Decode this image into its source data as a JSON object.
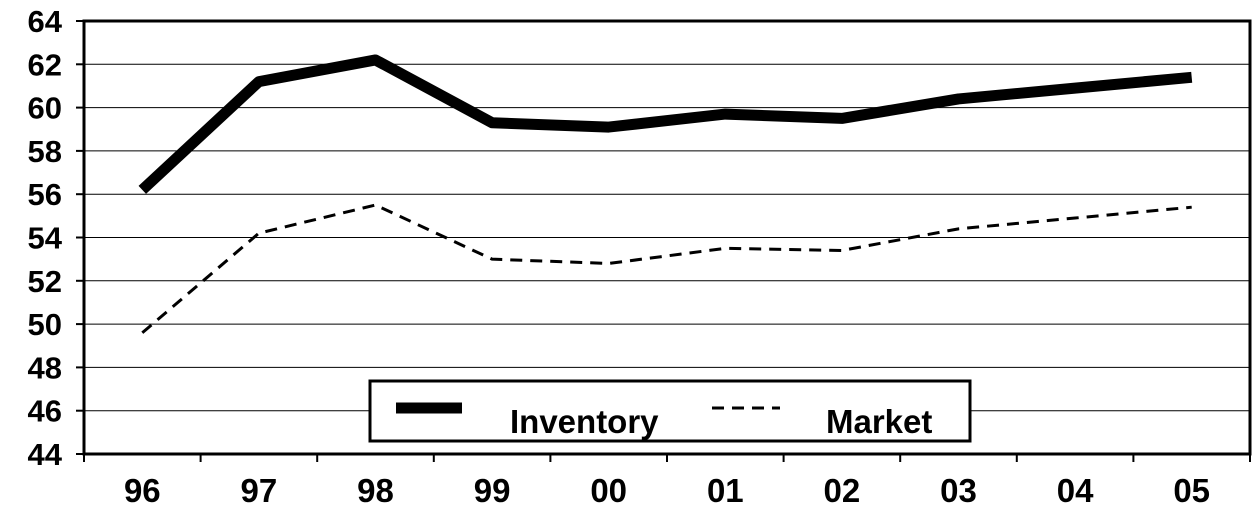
{
  "chart_data": {
    "type": "line",
    "categories": [
      "96",
      "97",
      "98",
      "99",
      "00",
      "01",
      "02",
      "03",
      "04",
      "05"
    ],
    "ylim": [
      44,
      64
    ],
    "yticks": [
      44,
      46,
      48,
      50,
      52,
      54,
      56,
      58,
      60,
      62,
      64
    ],
    "grid": true,
    "legend_position": "bottom-center",
    "series": [
      {
        "name": "Inventory",
        "style": "solid-thick",
        "color": "#000000",
        "values": [
          56.2,
          61.2,
          62.2,
          59.3,
          59.1,
          59.7,
          59.5,
          60.4,
          60.9,
          61.4
        ]
      },
      {
        "name": "Market",
        "style": "dashed",
        "color": "#000000",
        "values": [
          49.6,
          54.2,
          55.5,
          53.0,
          52.8,
          53.5,
          53.4,
          54.4,
          54.9,
          55.4
        ]
      }
    ]
  }
}
